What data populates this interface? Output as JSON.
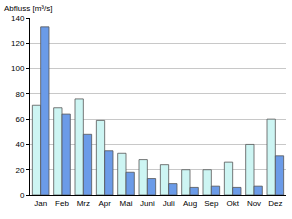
{
  "chart_data": {
    "type": "bar",
    "ylabel": "Abfluss [m³/s]",
    "categories": [
      "Jan",
      "Feb",
      "Mrz",
      "Apr",
      "Mai",
      "Juni",
      "Juli",
      "Aug",
      "Sep",
      "Okt",
      "Nov",
      "Dez"
    ],
    "series": [
      {
        "color": "#cdf5f3",
        "values": [
          71,
          69,
          76,
          59,
          33,
          28,
          24,
          20,
          20,
          26,
          40,
          60
        ]
      },
      {
        "color": "#6b9be8",
        "values": [
          133,
          64,
          48,
          35,
          18,
          13,
          9,
          6,
          7,
          6,
          7,
          31
        ]
      }
    ],
    "ylim": [
      0,
      140
    ],
    "yticks": [
      0,
      20,
      40,
      60,
      80,
      100,
      120,
      140
    ],
    "grid": true
  }
}
